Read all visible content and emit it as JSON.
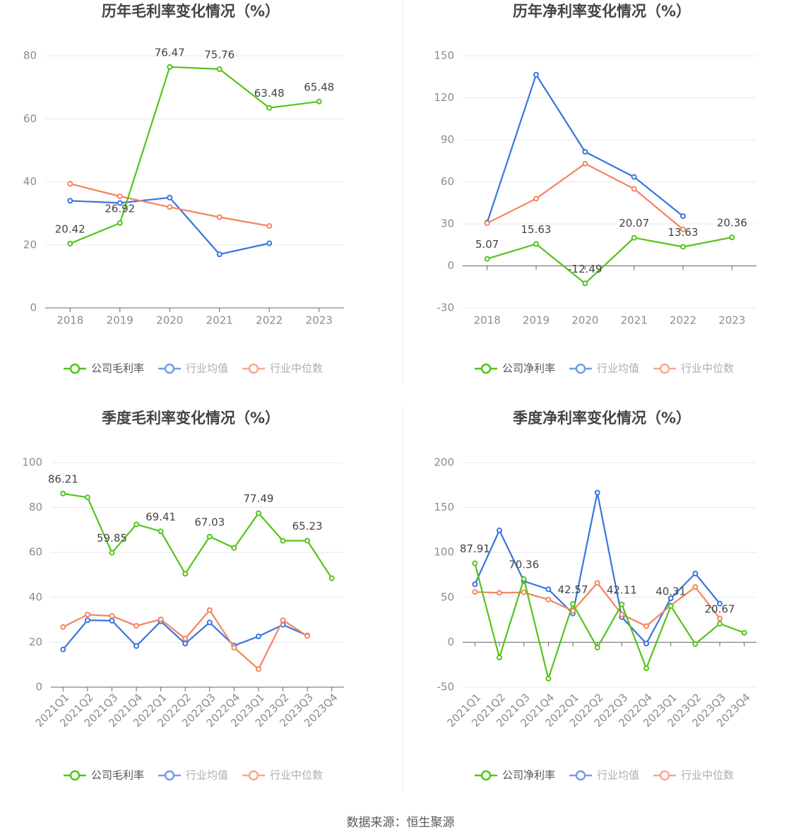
{
  "source": "数据来源：恒生聚源",
  "colors": {
    "company": "#52c41a",
    "avg": "#3a74e0",
    "median": "#f4845f",
    "grid": "#e6e8f0",
    "axis": "#666666",
    "tick": "#8c8c8c",
    "title": "#444444"
  },
  "chart_data": [
    {
      "type": "line",
      "title": "历年毛利率变化情况（%）",
      "categories": [
        "2018",
        "2019",
        "2020",
        "2021",
        "2022",
        "2023"
      ],
      "ylim": [
        0,
        80
      ],
      "yticks": [
        0,
        20,
        40,
        60,
        80
      ],
      "legend_position": "bottom",
      "grid": true,
      "series": [
        {
          "name": "公司毛利率",
          "key": "company",
          "values": [
            20.42,
            26.92,
            76.47,
            75.76,
            63.48,
            65.48
          ],
          "labels": [
            "20.42",
            "26.92",
            "76.47",
            "75.76",
            "63.48",
            "65.48"
          ]
        },
        {
          "name": "行业均值",
          "key": "avg",
          "values": [
            34.0,
            33.3,
            35.0,
            17.0,
            20.5,
            null
          ]
        },
        {
          "name": "行业中位数",
          "key": "median",
          "values": [
            39.4,
            35.4,
            32.0,
            28.8,
            26.0,
            null
          ]
        }
      ]
    },
    {
      "type": "line",
      "title": "历年净利率变化情况（%）",
      "categories": [
        "2018",
        "2019",
        "2020",
        "2021",
        "2022",
        "2023"
      ],
      "ylim": [
        -30,
        150
      ],
      "yticks": [
        -30,
        0,
        30,
        60,
        90,
        120,
        150
      ],
      "legend_position": "bottom",
      "grid": true,
      "series": [
        {
          "name": "公司净利率",
          "key": "company",
          "values": [
            5.07,
            15.63,
            -12.49,
            20.07,
            13.63,
            20.36
          ],
          "labels": [
            "5.07",
            "15.63",
            "-12.49",
            "20.07",
            "13.63",
            "20.36"
          ]
        },
        {
          "name": "行业均值",
          "key": "avg",
          "values": [
            31.0,
            136.5,
            81.5,
            63.5,
            35.5,
            null
          ]
        },
        {
          "name": "行业中位数",
          "key": "median",
          "values": [
            30.5,
            48.0,
            73.0,
            55.0,
            26.0,
            null
          ]
        }
      ]
    },
    {
      "type": "line",
      "title": "季度毛利率变化情况（%）",
      "categories": [
        "2021Q1",
        "2021Q2",
        "2021Q3",
        "2021Q4",
        "2022Q1",
        "2022Q2",
        "2022Q3",
        "2022Q4",
        "2023Q1",
        "2023Q2",
        "2023Q3",
        "2023Q4"
      ],
      "ylim": [
        0,
        100
      ],
      "yticks": [
        0,
        20,
        40,
        60,
        80,
        100
      ],
      "legend_position": "bottom",
      "grid": true,
      "series": [
        {
          "name": "公司毛利率",
          "key": "company",
          "values": [
            86.21,
            84.5,
            59.85,
            72.5,
            69.41,
            50.5,
            67.03,
            62.0,
            77.49,
            65.2,
            65.23,
            48.5
          ],
          "labels": [
            "86.21",
            "",
            "59.85",
            "",
            "69.41",
            "",
            "67.03",
            "",
            "77.49",
            "",
            "65.23",
            ""
          ]
        },
        {
          "name": "行业均值",
          "key": "avg",
          "values": [
            16.8,
            29.8,
            29.6,
            18.3,
            29.3,
            19.4,
            28.8,
            18.5,
            22.6,
            27.8,
            23.0,
            null
          ]
        },
        {
          "name": "行业中位数",
          "key": "median",
          "values": [
            26.8,
            32.3,
            31.7,
            27.3,
            30.2,
            21.6,
            34.3,
            17.6,
            8.0,
            29.8,
            22.8,
            null
          ]
        }
      ]
    },
    {
      "type": "line",
      "title": "季度净利率变化情况（%）",
      "categories": [
        "2021Q1",
        "2021Q2",
        "2021Q3",
        "2021Q4",
        "2022Q1",
        "2022Q2",
        "2022Q3",
        "2022Q4",
        "2023Q1",
        "2023Q2",
        "2023Q3",
        "2023Q4"
      ],
      "ylim": [
        -50,
        200
      ],
      "yticks": [
        -50,
        0,
        50,
        100,
        150,
        200
      ],
      "legend_position": "bottom",
      "grid": true,
      "series": [
        {
          "name": "公司净利率",
          "key": "company",
          "values": [
            87.91,
            -17.0,
            70.36,
            -40.5,
            42.57,
            -6.0,
            42.11,
            -29.0,
            40.31,
            -2.0,
            20.67,
            10.5
          ],
          "labels": [
            "87.91",
            "",
            "70.36",
            "",
            "42.57",
            "",
            "42.11",
            "",
            "40.31",
            "",
            "20.67",
            ""
          ]
        },
        {
          "name": "行业均值",
          "key": "avg",
          "values": [
            64.5,
            124.5,
            68.0,
            59.0,
            32.0,
            166.5,
            28.0,
            -1.5,
            49.0,
            76.5,
            43.0,
            null
          ]
        },
        {
          "name": "行业中位数",
          "key": "median",
          "values": [
            56.0,
            55.0,
            55.5,
            47.5,
            35.0,
            66.0,
            31.0,
            18.0,
            41.0,
            61.5,
            26.5,
            null
          ]
        }
      ]
    }
  ]
}
